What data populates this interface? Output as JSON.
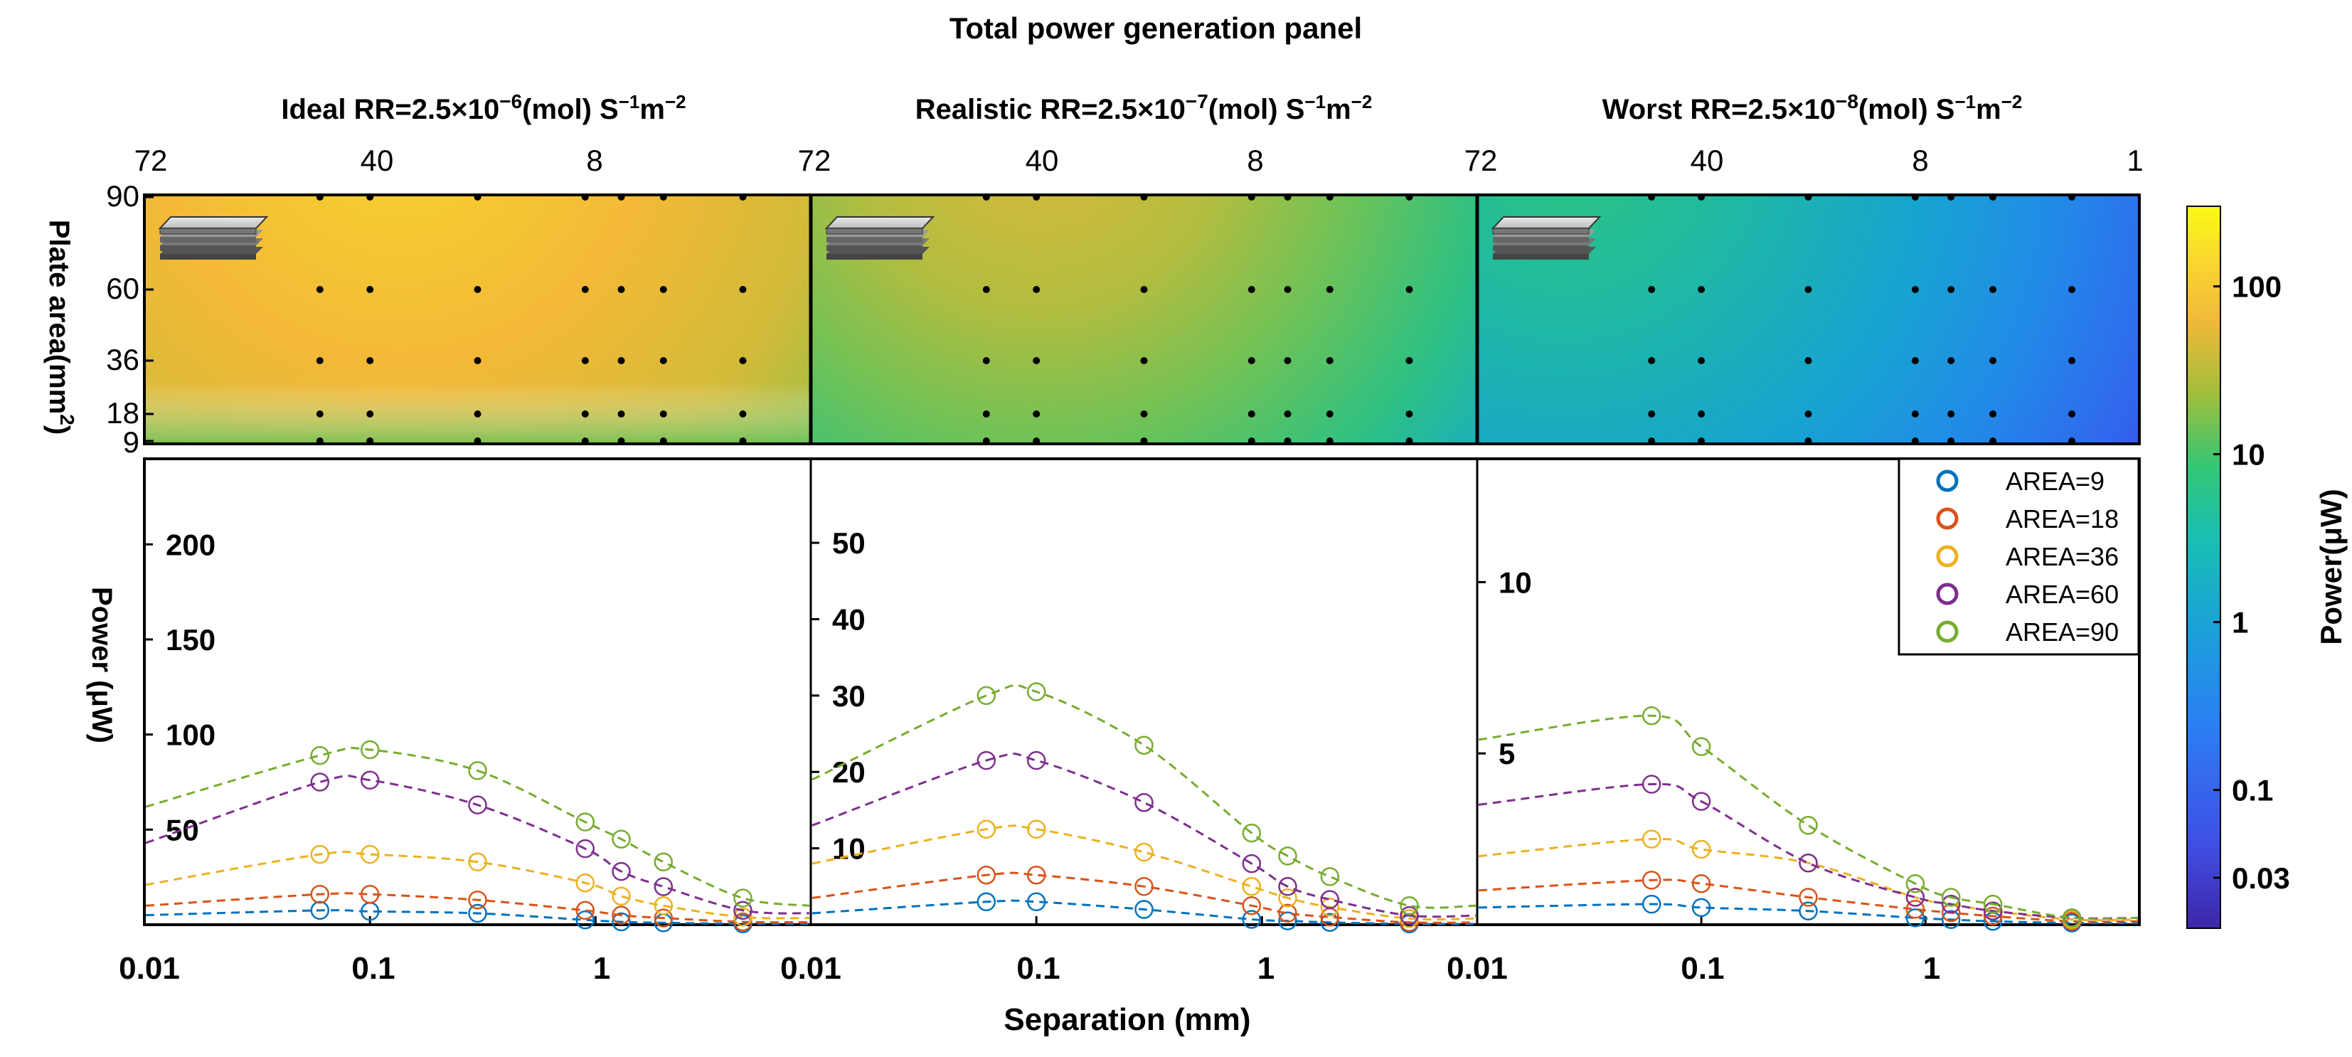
{
  "figure_title": "Total power generation panel",
  "panel_titles": [
    {
      "prefix": "Ideal RR=2.5×10",
      "exp": "−6",
      "unit_main": "(mol) S",
      "unit_exp1": "−1",
      "unit_m": "m",
      "unit_exp2": "−2"
    },
    {
      "prefix": "Realistic RR=2.5×10",
      "exp": "−7",
      "unit_main": "(mol) S",
      "unit_exp1": "−1",
      "unit_m": "m",
      "unit_exp2": "−2"
    },
    {
      "prefix": "Worst RR=2.5×10",
      "exp": "−8",
      "unit_main": "(mol) S",
      "unit_exp1": "−1",
      "unit_m": "m",
      "unit_exp2": "−2"
    }
  ],
  "labels": {
    "plate_area_axis": "Plate area(mm",
    "plate_area_exp": "2",
    "plate_area_close": ")",
    "power_axis": "Power (μW)",
    "separation_axis": "Separation (mm)",
    "colorbar_label": "Power(μW)"
  },
  "colors": {
    "area_9": "#0072bd",
    "area_18": "#d95319",
    "area_36": "#edb120",
    "area_60": "#7e2f8e",
    "area_90": "#77ac30"
  },
  "chart_data": [
    {
      "type": "heatmap",
      "panel": "ideal",
      "top_tick_labels": [
        "72",
        "40",
        "8",
        "72"
      ],
      "y_tick_labels": [
        "90",
        "60",
        "36",
        "18",
        "9"
      ],
      "y_values": [
        90,
        60,
        36,
        18,
        9
      ],
      "colorscale": "parula",
      "sample_separations": [
        0.06,
        0.1,
        0.3,
        0.9,
        1.3,
        2,
        4.5
      ],
      "sample_areas": [
        9,
        18,
        36,
        60,
        90
      ]
    },
    {
      "type": "heatmap",
      "panel": "realistic",
      "top_tick_labels": [
        "72",
        "40",
        "8"
      ],
      "y_values": [
        90,
        60,
        36,
        18,
        9
      ],
      "colorscale": "parula",
      "sample_separations": [
        0.06,
        0.1,
        0.3,
        0.9,
        1.3,
        2,
        4.5
      ],
      "sample_areas": [
        9,
        18,
        36,
        60,
        90
      ]
    },
    {
      "type": "heatmap",
      "panel": "worst",
      "top_tick_labels": [
        "72",
        "40",
        "8",
        "1"
      ],
      "y_values": [
        90,
        60,
        36,
        18,
        9
      ],
      "colorscale": "parula",
      "sample_separations": [
        0.06,
        0.1,
        0.3,
        0.9,
        1.3,
        2,
        4.5
      ],
      "sample_areas": [
        9,
        18,
        36,
        60,
        90
      ]
    },
    {
      "type": "line",
      "panel": "ideal",
      "x_scale": "log",
      "xlim": [
        0.01,
        9
      ],
      "ylim": [
        0,
        245
      ],
      "xlabel": "Separation (mm)",
      "ylabel": "Power (μW)",
      "x_tick_labels": [
        "0.01",
        "0.1",
        "1"
      ],
      "x_tick_values": [
        0.01,
        0.1,
        1
      ],
      "y_tick_labels": [
        "50",
        "100",
        "150",
        "200"
      ],
      "y_tick_values": [
        50,
        100,
        150,
        200
      ],
      "x": [
        0.06,
        0.1,
        0.3,
        0.9,
        1.3,
        2,
        4.5
      ],
      "series": [
        {
          "name": "AREA=9",
          "values": [
            7.5,
            7,
            6,
            2.5,
            1.5,
            1,
            0.5
          ]
        },
        {
          "name": "AREA=18",
          "values": [
            16,
            16,
            13,
            7.5,
            5,
            3.5,
            1.5
          ]
        },
        {
          "name": "AREA=36",
          "values": [
            37,
            37,
            33,
            22,
            15,
            10,
            4
          ]
        },
        {
          "name": "AREA=60",
          "values": [
            75,
            76,
            63,
            40,
            28,
            20,
            7.5
          ]
        },
        {
          "name": "AREA=90",
          "values": [
            89,
            92,
            81,
            54,
            45,
            33,
            14
          ]
        }
      ],
      "dashed_start_values": [
        5,
        10,
        21,
        43,
        62
      ],
      "dashed_end_values": [
        0.5,
        1.3,
        3.5,
        6,
        10
      ]
    },
    {
      "type": "line",
      "panel": "realistic",
      "x_scale": "log",
      "xlim": [
        0.01,
        9
      ],
      "ylim": [
        0,
        61
      ],
      "x_tick_labels": [
        "0.01",
        "0.1",
        "1"
      ],
      "x_tick_values": [
        0.01,
        0.1,
        1
      ],
      "y_tick_labels": [
        "10",
        "20",
        "30",
        "40",
        "50"
      ],
      "y_tick_values": [
        10,
        20,
        30,
        40,
        50
      ],
      "x": [
        0.06,
        0.1,
        0.3,
        0.9,
        1.3,
        2,
        4.5
      ],
      "series": [
        {
          "name": "AREA=9",
          "values": [
            3,
            3,
            2,
            0.7,
            0.5,
            0.3,
            0.1
          ]
        },
        {
          "name": "AREA=18",
          "values": [
            6.5,
            6.5,
            5,
            2.5,
            1.5,
            1,
            0.3
          ]
        },
        {
          "name": "AREA=36",
          "values": [
            12.5,
            12.5,
            9.5,
            5,
            3.5,
            2.3,
            0.8
          ]
        },
        {
          "name": "AREA=60",
          "values": [
            21.5,
            21.5,
            16,
            8,
            5,
            3.3,
            1.2
          ]
        },
        {
          "name": "AREA=90",
          "values": [
            30,
            30.5,
            23.5,
            12,
            9,
            6.3,
            2.5
          ]
        }
      ],
      "dashed_start_values": [
        1.5,
        3.5,
        8,
        13,
        19
      ],
      "dashed_end_values": [
        0.1,
        0.3,
        0.8,
        1.2,
        2.5
      ]
    },
    {
      "type": "line",
      "panel": "worst",
      "x_scale": "log",
      "xlim": [
        0.01,
        9
      ],
      "ylim": [
        0,
        13.6
      ],
      "x_tick_labels": [
        "0.01",
        "0.1",
        "1"
      ],
      "x_tick_values": [
        0.01,
        0.1,
        1
      ],
      "y_tick_labels": [
        "5",
        "10"
      ],
      "y_tick_values": [
        5,
        10
      ],
      "x": [
        0.06,
        0.1,
        0.3,
        0.9,
        1.3,
        2,
        4.5
      ],
      "series": [
        {
          "name": "AREA=9",
          "values": [
            0.6,
            0.5,
            0.4,
            0.2,
            0.15,
            0.1,
            0.05
          ]
        },
        {
          "name": "AREA=18",
          "values": [
            1.3,
            1.2,
            0.8,
            0.45,
            0.35,
            0.25,
            0.1
          ]
        },
        {
          "name": "AREA=36",
          "values": [
            2.5,
            2.2,
            1.8,
            0.8,
            0.6,
            0.4,
            0.15
          ]
        },
        {
          "name": "AREA=60",
          "values": [
            4.1,
            3.6,
            1.8,
            0.8,
            0.6,
            0.4,
            0.2
          ]
        },
        {
          "name": "AREA=90",
          "values": [
            6.1,
            5.2,
            2.9,
            1.2,
            0.8,
            0.6,
            0.2
          ]
        }
      ],
      "dashed_start_values": [
        0.5,
        1,
        2,
        3.5,
        5.4
      ],
      "dashed_end_values": [
        0.05,
        0.1,
        0.15,
        0.2,
        0.2
      ]
    },
    {
      "type": "legend",
      "entries": [
        "AREA=9",
        "AREA=18",
        "AREA=36",
        "AREA=60",
        "AREA=90"
      ]
    },
    {
      "type": "colorbar",
      "scale": "log",
      "range": [
        0.015,
        300
      ],
      "tick_labels": [
        "100",
        "10",
        "1",
        "0.1",
        "0.03"
      ],
      "tick_values": [
        100,
        10,
        1,
        0.1,
        0.03
      ]
    }
  ]
}
